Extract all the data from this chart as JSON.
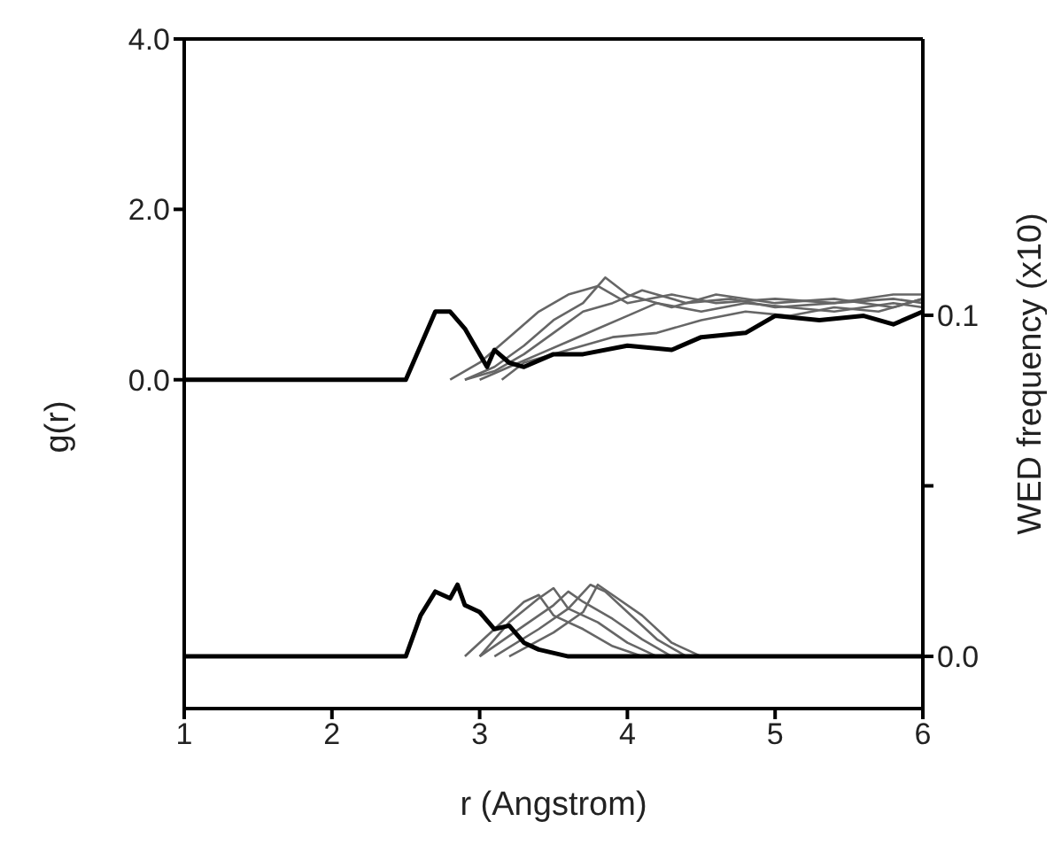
{
  "chart_data": {
    "type": "line",
    "xlabel": "r (Angstrom)",
    "ylabel": "g(r)",
    "y2label": "WED frequency (x10)",
    "xlim": [
      1,
      6
    ],
    "xticks": [
      1,
      2,
      3,
      4,
      5,
      6
    ],
    "ylim": [
      -3.86,
      4.0
    ],
    "yticks": [
      {
        "value": 0,
        "label": "0.0"
      },
      {
        "value": 2,
        "label": "2.0"
      },
      {
        "value": 4,
        "label": "4.0"
      }
    ],
    "y2lim": [
      -0.0153,
      0.181
    ],
    "y2ticks": [
      {
        "value": 0,
        "label": "0.0"
      },
      {
        "value": 0.05,
        "label": null
      },
      {
        "value": 0.1,
        "label": "0.1"
      }
    ],
    "marker": "none",
    "line_style": "solid",
    "series": [
      {
        "color": "#666666",
        "x": [
          2.8,
          3.0,
          3.2,
          3.4,
          3.6,
          3.8,
          4.0,
          4.3,
          4.6,
          5.0,
          5.4,
          5.8,
          6.0
        ],
        "values": [
          0,
          0.2,
          0.5,
          0.8,
          1.0,
          1.1,
          0.9,
          1.0,
          0.9,
          0.95,
          0.9,
          1.0,
          1.0
        ]
      },
      {
        "color": "#666666",
        "x": [
          2.9,
          3.1,
          3.3,
          3.5,
          3.7,
          3.85,
          4.0,
          4.3,
          4.6,
          5.0,
          5.4,
          5.8,
          6.0
        ],
        "values": [
          0,
          0.15,
          0.4,
          0.7,
          0.9,
          1.2,
          1.0,
          0.85,
          1.0,
          0.9,
          0.95,
          0.85,
          0.95
        ]
      },
      {
        "color": "#666666",
        "x": [
          2.9,
          3.1,
          3.3,
          3.5,
          3.7,
          3.9,
          4.1,
          4.4,
          4.7,
          5.0,
          5.4,
          5.8,
          6.0
        ],
        "values": [
          0,
          0.1,
          0.3,
          0.55,
          0.8,
          0.9,
          1.05,
          0.9,
          0.95,
          0.85,
          0.9,
          0.95,
          0.9
        ]
      },
      {
        "color": "#666666",
        "x": [
          3.0,
          3.2,
          3.4,
          3.6,
          3.8,
          4.0,
          4.2,
          4.5,
          4.8,
          5.1,
          5.4,
          5.8,
          6.0
        ],
        "values": [
          0,
          0.15,
          0.3,
          0.45,
          0.6,
          0.75,
          0.9,
          0.8,
          0.9,
          0.85,
          0.8,
          0.9,
          0.85
        ]
      },
      {
        "color": "#666666",
        "x": [
          3.15,
          3.3,
          3.6,
          3.9,
          4.2,
          4.5,
          4.8,
          5.1,
          5.4,
          5.7,
          6.0
        ],
        "values": [
          0,
          0.2,
          0.35,
          0.5,
          0.55,
          0.7,
          0.8,
          0.75,
          0.85,
          0.8,
          0.95
        ]
      },
      {
        "color": "#000000",
        "x": [
          1,
          2.5,
          2.6,
          2.7,
          2.8,
          2.9,
          2.95,
          3.05,
          3.1,
          3.2,
          3.3,
          3.5,
          3.7,
          4.0,
          4.3,
          4.5,
          4.8,
          5.0,
          5.3,
          5.6,
          5.8,
          6.0
        ],
        "values": [
          0,
          0,
          0.4,
          0.8,
          0.8,
          0.6,
          0.45,
          0.15,
          0.35,
          0.2,
          0.15,
          0.3,
          0.3,
          0.4,
          0.35,
          0.5,
          0.55,
          0.75,
          0.7,
          0.75,
          0.65,
          0.8
        ]
      },
      {
        "axis": "y2",
        "color": "#666666",
        "x": [
          2.9,
          3.1,
          3.3,
          3.4,
          3.5,
          3.7,
          3.9,
          4.1
        ],
        "values": [
          0,
          0.008,
          0.016,
          0.018,
          0.012,
          0.008,
          0.003,
          0
        ]
      },
      {
        "axis": "y2",
        "color": "#666666",
        "x": [
          3.0,
          3.2,
          3.4,
          3.5,
          3.6,
          3.8,
          4.0,
          4.2
        ],
        "values": [
          0,
          0.01,
          0.017,
          0.02,
          0.014,
          0.01,
          0.004,
          0
        ]
      },
      {
        "axis": "y2",
        "color": "#666666",
        "x": [
          3.0,
          3.3,
          3.5,
          3.6,
          3.7,
          3.9,
          4.1,
          4.3
        ],
        "values": [
          0,
          0.009,
          0.015,
          0.019,
          0.016,
          0.011,
          0.005,
          0
        ]
      },
      {
        "axis": "y2",
        "color": "#666666",
        "x": [
          3.1,
          3.4,
          3.6,
          3.75,
          3.85,
          4.0,
          4.2,
          4.4
        ],
        "values": [
          0,
          0.008,
          0.014,
          0.021,
          0.019,
          0.013,
          0.005,
          0
        ]
      },
      {
        "axis": "y2",
        "color": "#666666",
        "x": [
          3.2,
          3.5,
          3.7,
          3.8,
          3.9,
          4.1,
          4.3,
          4.5
        ],
        "values": [
          0,
          0.007,
          0.013,
          0.021,
          0.018,
          0.012,
          0.004,
          0
        ]
      },
      {
        "axis": "y2",
        "color": "#000000",
        "x": [
          1,
          2.5,
          2.6,
          2.7,
          2.8,
          2.85,
          2.9,
          3.0,
          3.1,
          3.2,
          3.3,
          3.4,
          3.6,
          6.0
        ],
        "values": [
          0,
          0,
          0.012,
          0.019,
          0.017,
          0.021,
          0.015,
          0.013,
          0.008,
          0.009,
          0.004,
          0.002,
          0,
          0
        ]
      }
    ]
  }
}
